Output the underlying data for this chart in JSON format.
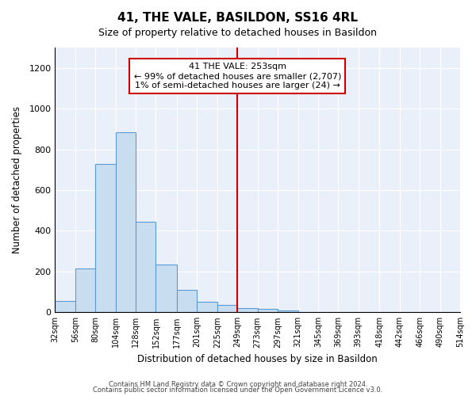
{
  "title": "41, THE VALE, BASILDON, SS16 4RL",
  "subtitle": "Size of property relative to detached houses in Basildon",
  "xlabel": "Distribution of detached houses by size in Basildon",
  "ylabel": "Number of detached properties",
  "bar_color": "#c9ddf0",
  "bar_edgecolor": "#5b9bd5",
  "background_color": "#eaf0fa",
  "vline_x": 249,
  "vline_color": "#cc0000",
  "annotation_title": "41 THE VALE: 253sqm",
  "annotation_line1": "← 99% of detached houses are smaller (2,707)",
  "annotation_line2": "1% of semi-detached houses are larger (24) →",
  "bin_edges": [
    32,
    56,
    80,
    104,
    128,
    152,
    177,
    201,
    225,
    249,
    273,
    297,
    321,
    345,
    369,
    393,
    418,
    442,
    466,
    490,
    514
  ],
  "bar_heights": [
    55,
    215,
    730,
    885,
    445,
    235,
    110,
    50,
    37,
    22,
    18,
    8,
    3,
    0,
    0,
    0,
    0,
    0,
    0,
    0
  ],
  "ylim": [
    0,
    1300
  ],
  "yticks": [
    0,
    200,
    400,
    600,
    800,
    1000,
    1200
  ],
  "footnote1": "Contains HM Land Registry data © Crown copyright and database right 2024.",
  "footnote2": "Contains public sector information licensed under the Open Government Licence v3.0."
}
